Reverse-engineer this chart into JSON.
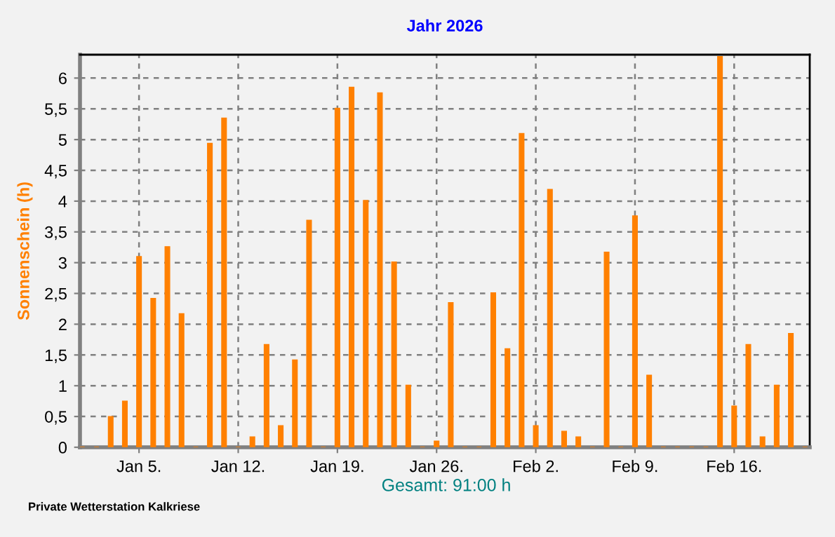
{
  "chart_data": {
    "type": "bar",
    "title": "Jahr 2026",
    "ylabel": "Sonnenschein (h)",
    "x": [
      "2026-01-01",
      "2026-01-02",
      "2026-01-03",
      "2026-01-04",
      "2026-01-05",
      "2026-01-06",
      "2026-01-07",
      "2026-01-08",
      "2026-01-09",
      "2026-01-10",
      "2026-01-11",
      "2026-01-12",
      "2026-01-13",
      "2026-01-14",
      "2026-01-15",
      "2026-01-16",
      "2026-01-17",
      "2026-01-18",
      "2026-01-19",
      "2026-01-20",
      "2026-01-21",
      "2026-01-22",
      "2026-01-23",
      "2026-01-24",
      "2026-01-25",
      "2026-01-26",
      "2026-01-27",
      "2026-01-28",
      "2026-01-29",
      "2026-01-30",
      "2026-01-31",
      "2026-02-01",
      "2026-02-02",
      "2026-02-03",
      "2026-02-04",
      "2026-02-05",
      "2026-02-06",
      "2026-02-07",
      "2026-02-08",
      "2026-02-09",
      "2026-02-10",
      "2026-02-11",
      "2026-02-12",
      "2026-02-13",
      "2026-02-14",
      "2026-02-15",
      "2026-02-16",
      "2026-02-17",
      "2026-02-18",
      "2026-02-19",
      "2026-02-20",
      "2026-02-21"
    ],
    "series": [
      {
        "color": "#ff8000",
        "values": [
          0,
          0,
          0.5,
          0.75,
          3.1,
          2.42,
          3.26,
          2.17,
          0,
          4.94,
          5.35,
          0,
          0.17,
          1.67,
          0.35,
          1.42,
          3.69,
          0,
          5.51,
          5.85,
          4.01,
          5.76,
          3.01,
          1.01,
          0,
          0.1,
          2.35,
          0,
          0,
          2.51,
          1.6,
          5.1,
          0.35,
          4.19,
          0.26,
          0.17,
          0,
          3.17,
          0,
          3.76,
          1.17,
          0,
          0,
          0,
          0,
          6.35,
          0.67,
          1.67,
          0.17,
          1.01,
          1.85,
          0
        ]
      }
    ],
    "xlim": [
      "2025-12-31T20:00",
      "2026-02-21T08:00"
    ],
    "xticks": [
      {
        "value": "2026-01-05",
        "label": "Jan 5."
      },
      {
        "value": "2026-01-12",
        "label": "Jan 12."
      },
      {
        "value": "2026-01-19",
        "label": "Jan 19."
      },
      {
        "value": "2026-01-26",
        "label": "Jan 26."
      },
      {
        "value": "2026-02-02",
        "label": "Feb 2."
      },
      {
        "value": "2026-02-09",
        "label": "Feb 9."
      },
      {
        "value": "2026-02-16",
        "label": "Feb 16."
      }
    ],
    "ylim": [
      0,
      6.38
    ],
    "yticks": [
      0,
      {
        "value": 0.5,
        "label": "0,5"
      },
      1,
      {
        "value": 1.5,
        "label": "1,5"
      },
      2,
      {
        "value": 2.5,
        "label": "2,5"
      },
      3,
      {
        "value": 3.5,
        "label": "3,5"
      },
      4,
      {
        "value": 4.5,
        "label": "4,5"
      },
      5,
      {
        "value": 5.5,
        "label": "5,5"
      },
      6
    ],
    "grid": true,
    "line_style": "dashed",
    "annotations": [
      "Gesamt: 91:00 h",
      "Private Wetterstation Kalkriese"
    ]
  }
}
